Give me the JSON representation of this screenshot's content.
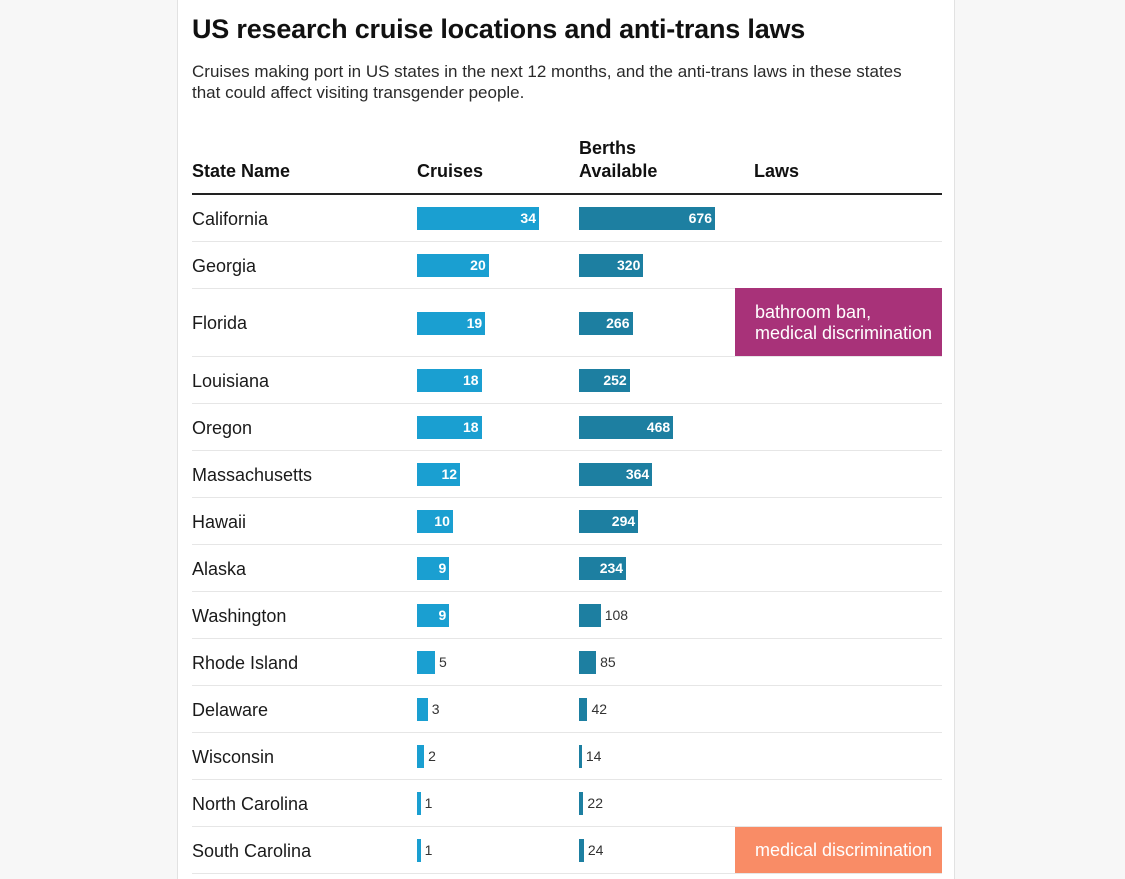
{
  "title": "US research cruise locations and anti-trans laws",
  "subtitle": "Cruises making port in US states in the next 12 months, and the anti-trans laws in these states that could affect visiting transgender people.",
  "headers": {
    "state": "State Name",
    "cruises": "Cruises",
    "berths_line1": "Berths",
    "berths_line2": "Available",
    "laws": "Laws"
  },
  "colors": {
    "cruises_bar": "#1a9fd1",
    "berths_bar": "#1d7fa1",
    "law_bathroom_medical": "#a83279",
    "law_medical": "#f98c66"
  },
  "chart_data": {
    "type": "table",
    "columns": [
      "State Name",
      "Cruises",
      "Berths Available",
      "Laws"
    ],
    "cruises_max": 34,
    "berths_max": 676,
    "rows": [
      {
        "state": "California",
        "cruises": 34,
        "berths": 676,
        "laws": ""
      },
      {
        "state": "Georgia",
        "cruises": 20,
        "berths": 320,
        "laws": ""
      },
      {
        "state": "Florida",
        "cruises": 19,
        "berths": 266,
        "laws": "bathroom ban, medical discrimination"
      },
      {
        "state": "Louisiana",
        "cruises": 18,
        "berths": 252,
        "laws": ""
      },
      {
        "state": "Oregon",
        "cruises": 18,
        "berths": 468,
        "laws": ""
      },
      {
        "state": "Massachusetts",
        "cruises": 12,
        "berths": 364,
        "laws": ""
      },
      {
        "state": "Hawaii",
        "cruises": 10,
        "berths": 294,
        "laws": ""
      },
      {
        "state": "Alaska",
        "cruises": 9,
        "berths": 234,
        "laws": ""
      },
      {
        "state": "Washington",
        "cruises": 9,
        "berths": 108,
        "laws": ""
      },
      {
        "state": "Rhode Island",
        "cruises": 5,
        "berths": 85,
        "laws": ""
      },
      {
        "state": "Delaware",
        "cruises": 3,
        "berths": 42,
        "laws": ""
      },
      {
        "state": "Wisconsin",
        "cruises": 2,
        "berths": 14,
        "laws": ""
      },
      {
        "state": "North Carolina",
        "cruises": 1,
        "berths": 22,
        "laws": ""
      },
      {
        "state": "South Carolina",
        "cruises": 1,
        "berths": 24,
        "laws": "medical discrimination"
      }
    ]
  }
}
